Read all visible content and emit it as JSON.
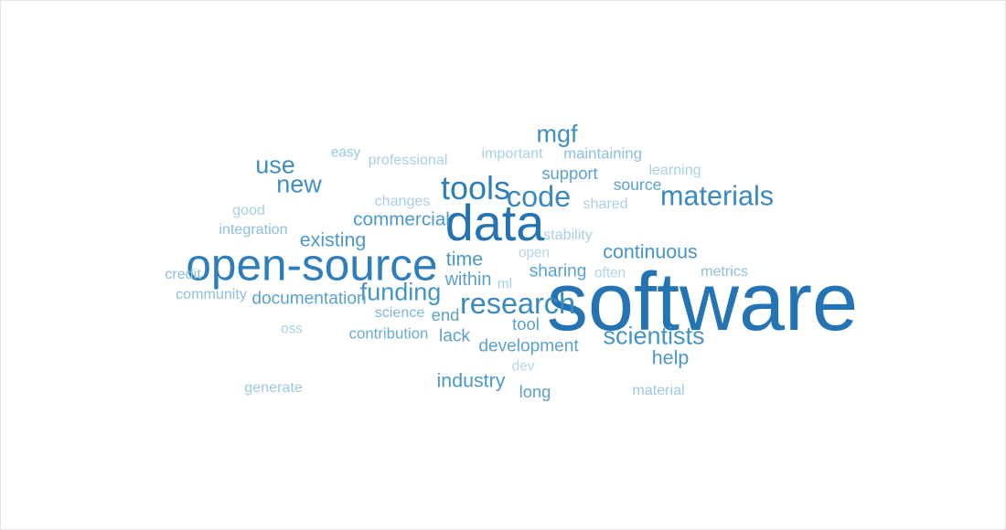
{
  "word_cloud": {
    "words": [
      {
        "text": "software",
        "weight": 1.0,
        "color": "#2474b5"
      },
      {
        "text": "data",
        "weight": 0.62,
        "color": "#2474b5"
      },
      {
        "text": "open-source",
        "weight": 0.55,
        "color": "#2e7ebc"
      },
      {
        "text": "tools",
        "weight": 0.4,
        "color": "#2e7ebc"
      },
      {
        "text": "code",
        "weight": 0.36,
        "color": "#3a89c1"
      },
      {
        "text": "research",
        "weight": 0.36,
        "color": "#3a89c1"
      },
      {
        "text": "materials",
        "weight": 0.34,
        "color": "#3a89c1"
      },
      {
        "text": "mgf",
        "weight": 0.3,
        "color": "#3f8fc5"
      },
      {
        "text": "use",
        "weight": 0.3,
        "color": "#3f8fc5"
      },
      {
        "text": "new",
        "weight": 0.3,
        "color": "#3f8fc5"
      },
      {
        "text": "funding",
        "weight": 0.3,
        "color": "#4594c8"
      },
      {
        "text": "scientists",
        "weight": 0.3,
        "color": "#4594c8"
      },
      {
        "text": "continuous",
        "weight": 0.28,
        "color": "#4594c8"
      },
      {
        "text": "existing",
        "weight": 0.28,
        "color": "#4a98cb"
      },
      {
        "text": "commercial",
        "weight": 0.27,
        "color": "#4a98cb"
      },
      {
        "text": "time",
        "weight": 0.28,
        "color": "#4a98cb"
      },
      {
        "text": "help",
        "weight": 0.28,
        "color": "#4a98cb"
      },
      {
        "text": "industry",
        "weight": 0.28,
        "color": "#4a98cb"
      },
      {
        "text": "documentation",
        "weight": 0.25,
        "color": "#5aa1cf"
      },
      {
        "text": "within",
        "weight": 0.26,
        "color": "#5aa1cf"
      },
      {
        "text": "sharing",
        "weight": 0.25,
        "color": "#5aa1cf"
      },
      {
        "text": "development",
        "weight": 0.25,
        "color": "#5aa1cf"
      },
      {
        "text": "lack",
        "weight": 0.25,
        "color": "#5aa1cf"
      },
      {
        "text": "end",
        "weight": 0.24,
        "color": "#5aa1cf"
      },
      {
        "text": "tool",
        "weight": 0.24,
        "color": "#5aa1cf"
      },
      {
        "text": "long",
        "weight": 0.24,
        "color": "#5aa1cf"
      },
      {
        "text": "support",
        "weight": 0.24,
        "color": "#5aa1cf"
      },
      {
        "text": "source",
        "weight": 0.23,
        "color": "#5aa1cf"
      },
      {
        "text": "contribution",
        "weight": 0.22,
        "color": "#6aaad3"
      },
      {
        "text": "maintaining",
        "weight": 0.22,
        "color": "#8cbfdf"
      },
      {
        "text": "metrics",
        "weight": 0.21,
        "color": "#8cbfdf"
      },
      {
        "text": "science",
        "weight": 0.21,
        "color": "#7fb6da"
      },
      {
        "text": "community",
        "weight": 0.21,
        "color": "#8cbfdf"
      },
      {
        "text": "integration",
        "weight": 0.21,
        "color": "#8cbfdf"
      },
      {
        "text": "professional",
        "weight": 0.21,
        "color": "#a9cfe7"
      },
      {
        "text": "important",
        "weight": 0.21,
        "color": "#a9cfe7"
      },
      {
        "text": "learning",
        "weight": 0.21,
        "color": "#a9cfe7"
      },
      {
        "text": "changes",
        "weight": 0.21,
        "color": "#a9cfe7"
      },
      {
        "text": "shared",
        "weight": 0.21,
        "color": "#a9cfe7"
      },
      {
        "text": "stability",
        "weight": 0.21,
        "color": "#a9cfe7"
      },
      {
        "text": "open",
        "weight": 0.2,
        "color": "#b3d5ea"
      },
      {
        "text": "often",
        "weight": 0.2,
        "color": "#b3d5ea"
      },
      {
        "text": "good",
        "weight": 0.21,
        "color": "#a9cfe7"
      },
      {
        "text": "credit",
        "weight": 0.21,
        "color": "#8cbfdf"
      },
      {
        "text": "easy",
        "weight": 0.2,
        "color": "#9cc8e3"
      },
      {
        "text": "oss",
        "weight": 0.2,
        "color": "#a9cfe7"
      },
      {
        "text": "ml",
        "weight": 0.2,
        "color": "#a9cfe7"
      },
      {
        "text": "dev",
        "weight": 0.2,
        "color": "#b3d5ea"
      },
      {
        "text": "generate",
        "weight": 0.21,
        "color": "#9cc8e3"
      },
      {
        "text": "material",
        "weight": 0.21,
        "color": "#9cc8e3"
      }
    ]
  }
}
